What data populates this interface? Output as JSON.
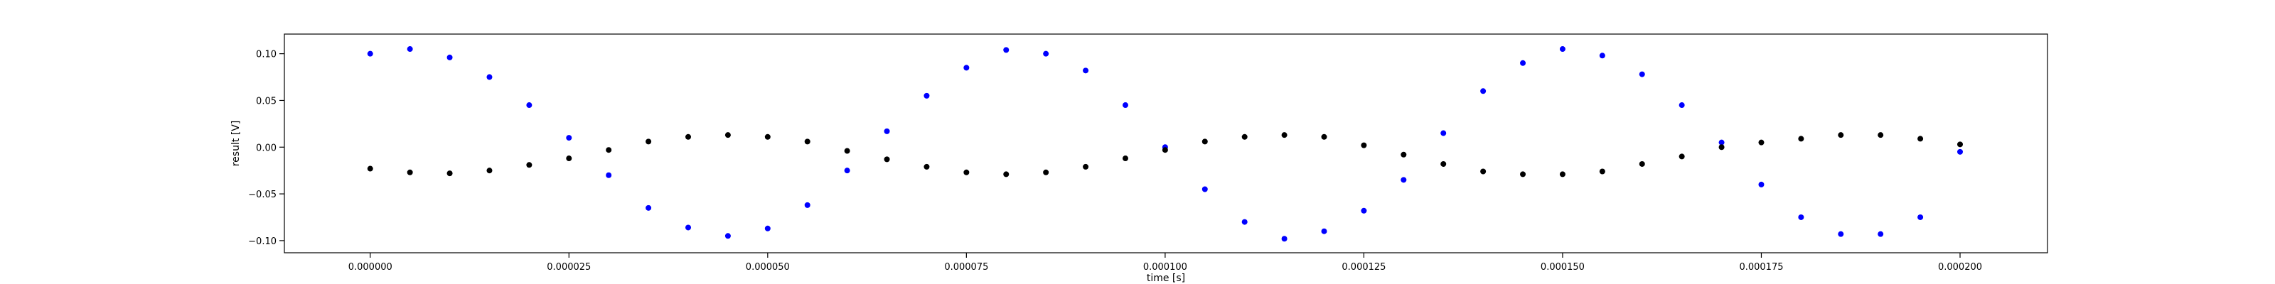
{
  "chart_data": {
    "type": "scatter",
    "xlabel": "time [s]",
    "ylabel": "result [V]",
    "xlim": [
      -1.08e-05,
      0.000211
    ],
    "ylim": [
      -0.113,
      0.121
    ],
    "xticks": [
      0,
      2.5e-05,
      5e-05,
      7.5e-05,
      0.0001,
      0.000125,
      0.00015,
      0.000175,
      0.0002
    ],
    "xtick_labels": [
      "0.000000",
      "0.000025",
      "0.000050",
      "0.000075",
      "0.000100",
      "0.000125",
      "0.000150",
      "0.000175",
      "0.000200"
    ],
    "yticks": [
      -0.1,
      -0.05,
      0.0,
      0.05,
      0.1
    ],
    "ytick_labels": [
      "−0.10",
      "−0.05",
      "0.00",
      "0.05",
      "0.10"
    ],
    "grid": false,
    "series": [
      {
        "color": "#0000ff",
        "marker": "dot",
        "x": [
          0,
          5e-06,
          1e-05,
          1.5e-05,
          2e-05,
          2.5e-05,
          3e-05,
          3.5e-05,
          4e-05,
          4.5e-05,
          5e-05,
          5.5e-05,
          6e-05,
          6.5e-05,
          7e-05,
          7.5e-05,
          8e-05,
          8.5e-05,
          9e-05,
          9.5e-05,
          0.0001,
          0.000105,
          0.00011,
          0.000115,
          0.00012,
          0.000125,
          0.00013,
          0.000135,
          0.00014,
          0.000145,
          0.00015,
          0.000155,
          0.00016,
          0.000165,
          0.00017,
          0.000175,
          0.00018,
          0.000185,
          0.00019,
          0.000195,
          0.0002
        ],
        "y": [
          0.1,
          0.105,
          0.096,
          0.075,
          0.045,
          0.01,
          -0.03,
          -0.065,
          -0.086,
          -0.095,
          -0.087,
          -0.062,
          -0.025,
          0.017,
          0.055,
          0.085,
          0.104,
          0.1,
          0.082,
          0.045,
          0.0,
          -0.045,
          -0.08,
          -0.098,
          -0.09,
          -0.068,
          -0.035,
          0.015,
          0.06,
          0.09,
          0.105,
          0.098,
          0.078,
          0.045,
          0.005,
          -0.04,
          -0.075,
          -0.093,
          -0.093,
          -0.075,
          -0.005
        ]
      },
      {
        "color": "#000000",
        "marker": "dot",
        "x": [
          0,
          5e-06,
          1e-05,
          1.5e-05,
          2e-05,
          2.5e-05,
          3e-05,
          3.5e-05,
          4e-05,
          4.5e-05,
          5e-05,
          5.5e-05,
          6e-05,
          6.5e-05,
          7e-05,
          7.5e-05,
          8e-05,
          8.5e-05,
          9e-05,
          9.5e-05,
          0.0001,
          0.000105,
          0.00011,
          0.000115,
          0.00012,
          0.000125,
          0.00013,
          0.000135,
          0.00014,
          0.000145,
          0.00015,
          0.000155,
          0.00016,
          0.000165,
          0.00017,
          0.000175,
          0.00018,
          0.000185,
          0.00019,
          0.000195,
          0.0002
        ],
        "y": [
          -0.023,
          -0.027,
          -0.028,
          -0.025,
          -0.019,
          -0.012,
          -0.003,
          0.006,
          0.011,
          0.013,
          0.011,
          0.006,
          -0.004,
          -0.013,
          -0.021,
          -0.027,
          -0.029,
          -0.027,
          -0.021,
          -0.012,
          -0.003,
          0.006,
          0.011,
          0.013,
          0.011,
          0.002,
          -0.008,
          -0.018,
          -0.026,
          -0.029,
          -0.029,
          -0.026,
          -0.018,
          -0.01,
          0.0,
          0.005,
          0.009,
          0.013,
          0.013,
          0.009,
          0.003
        ]
      }
    ]
  }
}
